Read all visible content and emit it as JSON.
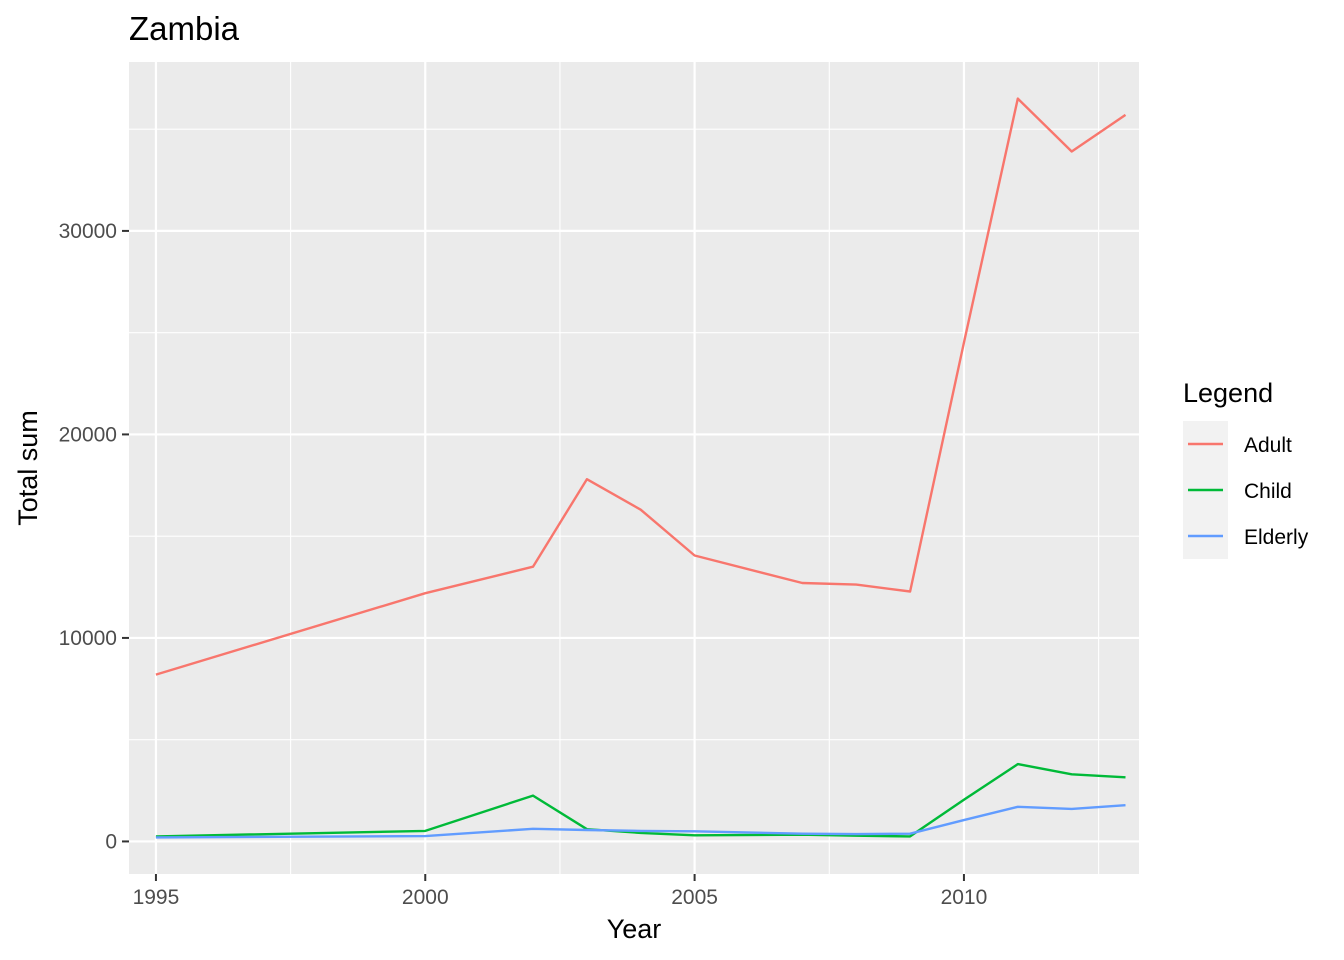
{
  "chart_data": {
    "type": "line",
    "title": "Zambia",
    "xlabel": "Year",
    "ylabel": "Total sum",
    "xlim": [
      1994.5,
      2013.25
    ],
    "ylim": [
      -1600,
      38300
    ],
    "x_ticks": [
      1995,
      2000,
      2005,
      2010
    ],
    "x_tick_labels": [
      "1995",
      "2000",
      "2005",
      "2010"
    ],
    "y_ticks": [
      0,
      10000,
      20000,
      30000
    ],
    "y_tick_labels": [
      "0",
      "10000",
      "20000",
      "30000"
    ],
    "grid": true,
    "legend_title": "Legend",
    "legend_position": "right",
    "series": [
      {
        "name": "Adult",
        "color": "#F8766D",
        "x": [
          1995,
          2000,
          2002,
          2003,
          2004,
          2005,
          2007,
          2008,
          2009,
          2010,
          2011,
          2012,
          2013
        ],
        "values": [
          8200,
          12200,
          13500,
          17800,
          16300,
          14050,
          12700,
          12620,
          12280,
          24500,
          36500,
          33900,
          35700
        ]
      },
      {
        "name": "Child",
        "color": "#00BA38",
        "x": [
          1995,
          2000,
          2002,
          2003,
          2004,
          2005,
          2007,
          2008,
          2009,
          2010,
          2011,
          2012,
          2013
        ],
        "values": [
          250,
          520,
          2250,
          600,
          420,
          300,
          330,
          280,
          250,
          2050,
          3800,
          3300,
          3150
        ]
      },
      {
        "name": "Elderly",
        "color": "#619CFF",
        "x": [
          1995,
          2000,
          2002,
          2003,
          2004,
          2005,
          2007,
          2008,
          2009,
          2010,
          2011,
          2012,
          2013
        ],
        "values": [
          200,
          260,
          620,
          560,
          520,
          500,
          380,
          360,
          380,
          1050,
          1700,
          1600,
          1780
        ]
      }
    ]
  }
}
